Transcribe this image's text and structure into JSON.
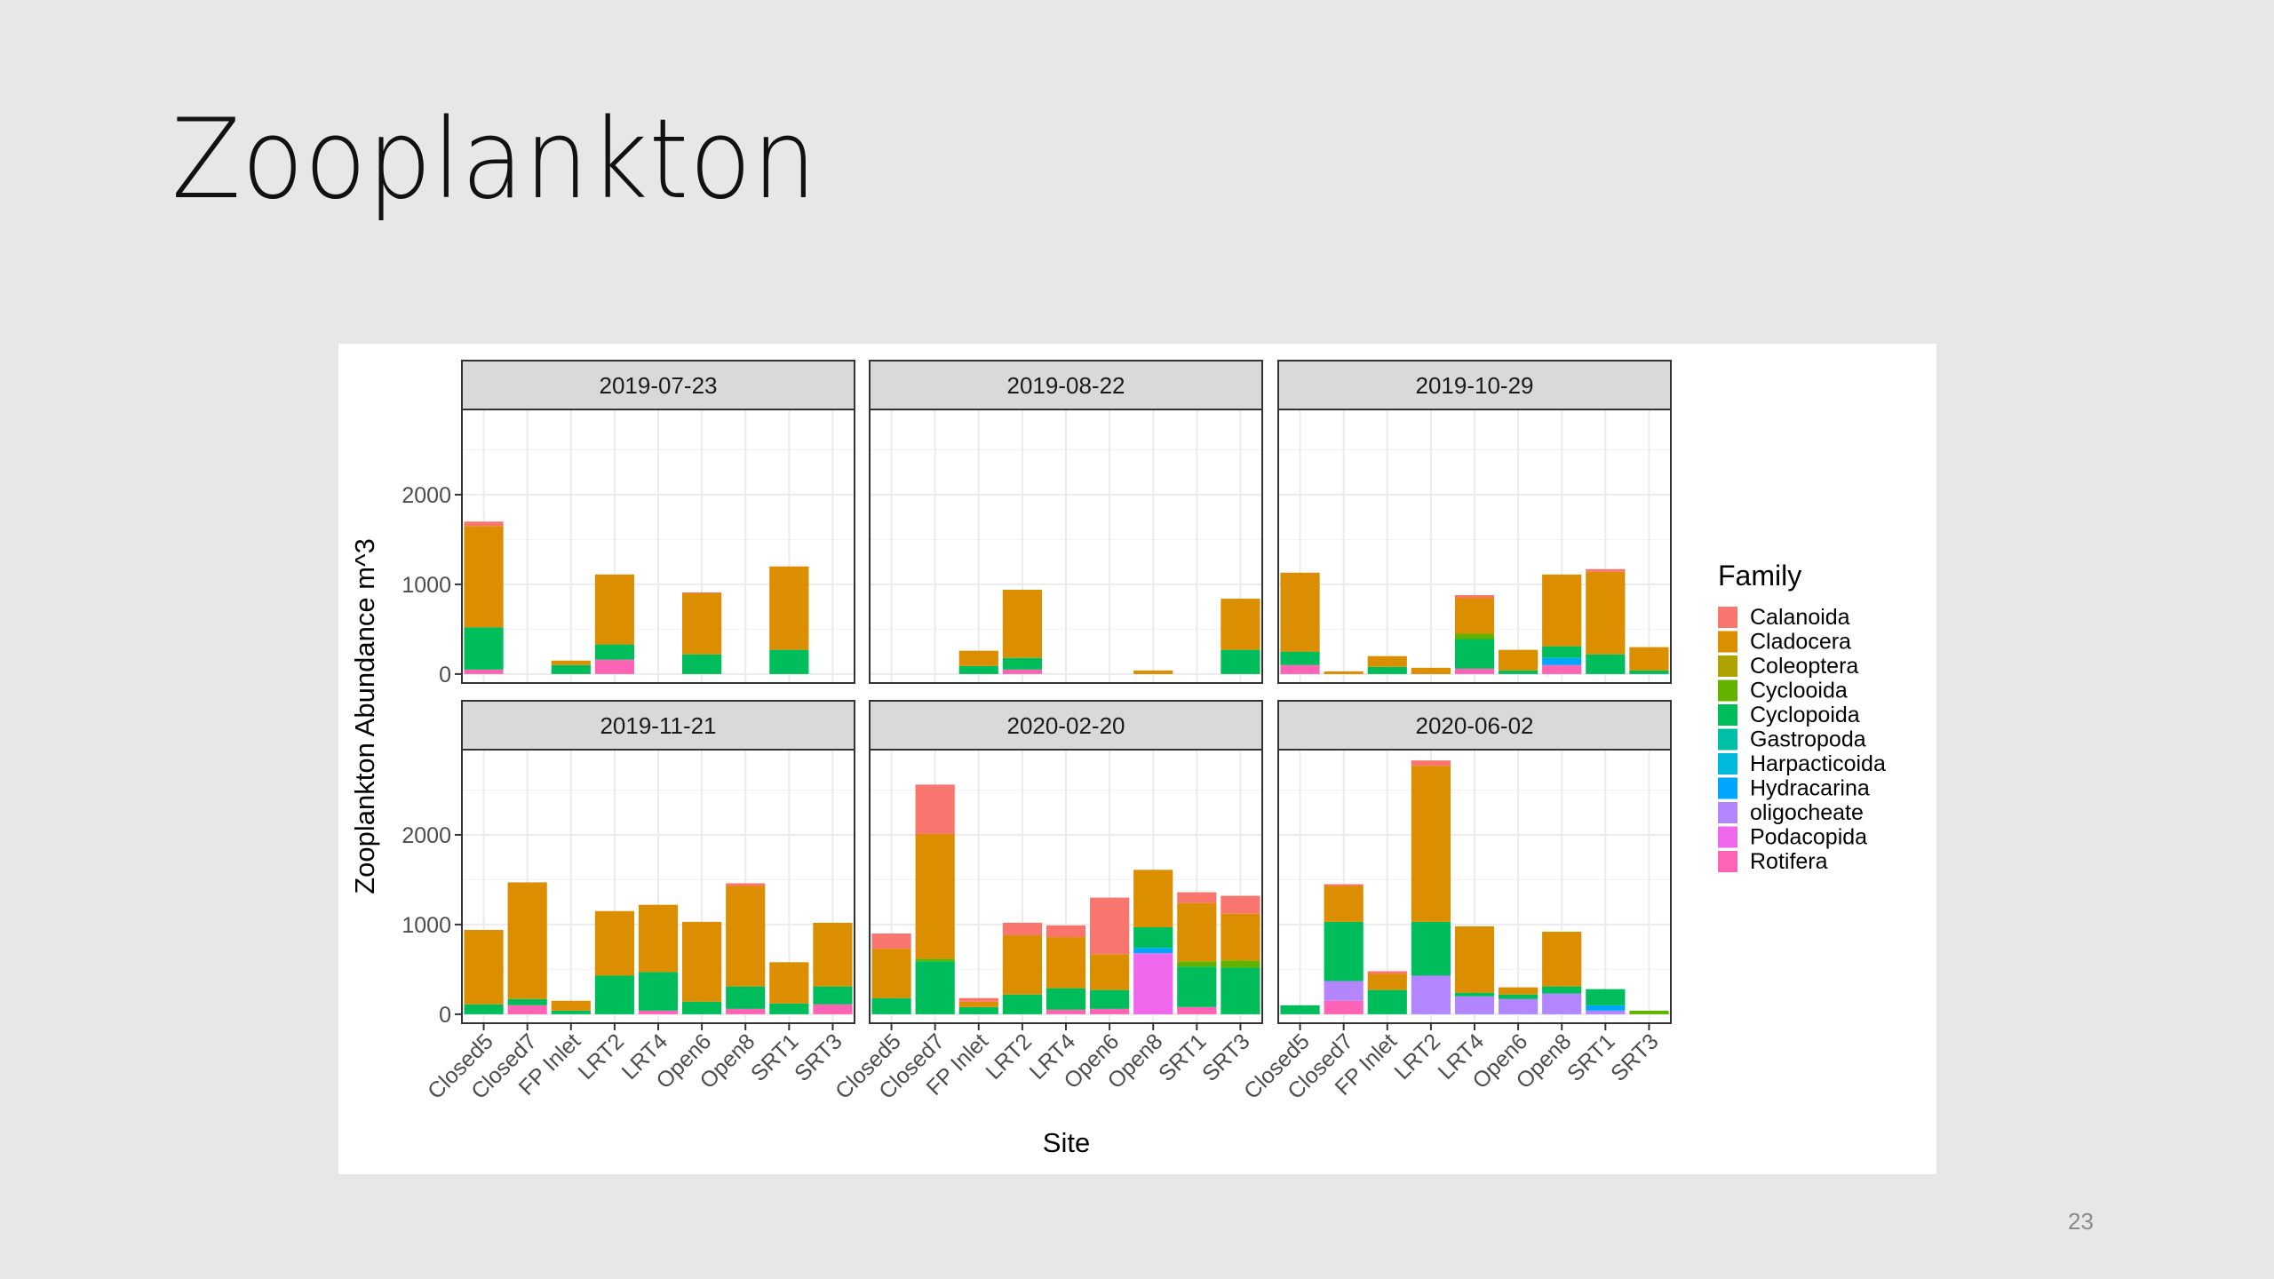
{
  "slide": {
    "title": "Zooplankton",
    "page_number": "23"
  },
  "chart_data": {
    "type": "bar",
    "stacked": true,
    "facet_layout": "2 rows x 3 columns",
    "xlabel": "Site",
    "ylabel": "Zooplankton Abundance m^3",
    "ylim": [
      -100,
      2950
    ],
    "yticks": [
      0,
      1000,
      2000
    ],
    "ytick_labels": [
      "0",
      "1000",
      "2000"
    ],
    "grid": true,
    "legend_position": "right",
    "legend_title": "Family",
    "categories": [
      "Closed5",
      "Closed7",
      "FP Inlet",
      "LRT2",
      "LRT4",
      "Open6",
      "Open8",
      "SRT1",
      "SRT3"
    ],
    "families": [
      "Calanoida",
      "Cladocera",
      "Coleoptera",
      "Cyclooida",
      "Cyclopoida",
      "Gastropoda",
      "Harpacticoida",
      "Hydracarina",
      "oligocheate",
      "Podacopida",
      "Rotifera"
    ],
    "colors": {
      "Calanoida": "#F8766D",
      "Cladocera": "#DB8E00",
      "Coleoptera": "#AEA200",
      "Cyclooida": "#64B200",
      "Cyclopoida": "#00BD5C",
      "Gastropoda": "#00C1A7",
      "Harpacticoida": "#00BADE",
      "Hydracarina": "#00A6FF",
      "oligocheate": "#B385FF",
      "Podacopida": "#EF67EB",
      "Rotifera": "#FF63B6"
    },
    "panels": [
      {
        "date": "2019-07-23",
        "sites": {
          "Closed5": {
            "Rotifera": 50,
            "Cyclopoida": 470,
            "Cladocera": 1130,
            "Calanoida": 50
          },
          "Closed7": {},
          "FP Inlet": {
            "Cyclopoida": 100,
            "Cladocera": 50
          },
          "LRT2": {
            "Rotifera": 160,
            "Cyclopoida": 170,
            "Cladocera": 780
          },
          "LRT4": {},
          "Open6": {
            "Cyclopoida": 220,
            "Cladocera": 680,
            "Calanoida": 10
          },
          "Open8": {},
          "SRT1": {
            "Cyclopoida": 270,
            "Cladocera": 930
          },
          "SRT3": {}
        }
      },
      {
        "date": "2019-08-22",
        "sites": {
          "Closed5": {},
          "Closed7": {},
          "FP Inlet": {
            "Cyclopoida": 90,
            "Cladocera": 170
          },
          "LRT2": {
            "Rotifera": 50,
            "Cyclopoida": 130,
            "Cladocera": 760
          },
          "LRT4": {},
          "Open6": {},
          "Open8": {
            "Cladocera": 40
          },
          "SRT1": {},
          "SRT3": {
            "Cyclopoida": 270,
            "Cladocera": 570
          }
        }
      },
      {
        "date": "2019-10-29",
        "sites": {
          "Closed5": {
            "Rotifera": 100,
            "Cyclopoida": 150,
            "Cladocera": 880
          },
          "Closed7": {
            "Cladocera": 30
          },
          "FP Inlet": {
            "Cyclopoida": 80,
            "Cladocera": 120
          },
          "LRT2": {
            "Cladocera": 70
          },
          "LRT4": {
            "Rotifera": 60,
            "Cyclopoida": 330,
            "Cyclooida": 60,
            "Cladocera": 400,
            "Calanoida": 30
          },
          "Open6": {
            "Cyclopoida": 40,
            "Cladocera": 230
          },
          "Open8": {
            "Rotifera": 100,
            "Hydracarina": 80,
            "Cyclopoida": 130,
            "Cladocera": 800
          },
          "SRT1": {
            "Cyclopoida": 220,
            "Cladocera": 920,
            "Calanoida": 30
          },
          "SRT3": {
            "Cyclopoida": 40,
            "Cladocera": 260
          }
        }
      },
      {
        "date": "2019-11-21",
        "sites": {
          "Closed5": {
            "Cyclopoida": 110,
            "Cladocera": 830
          },
          "Closed7": {
            "Rotifera": 100,
            "Cyclopoida": 70,
            "Cladocera": 1300
          },
          "FP Inlet": {
            "Cyclopoida": 40,
            "Cladocera": 110
          },
          "LRT2": {
            "Cyclopoida": 430,
            "Cladocera": 720
          },
          "LRT4": {
            "Rotifera": 40,
            "Cyclopoida": 430,
            "Cladocera": 750
          },
          "Open6": {
            "Cyclopoida": 140,
            "Cladocera": 890
          },
          "Open8": {
            "Rotifera": 60,
            "Cyclopoida": 250,
            "Cladocera": 1120,
            "Calanoida": 30
          },
          "SRT1": {
            "Cyclopoida": 120,
            "Cladocera": 460
          },
          "SRT3": {
            "Rotifera": 110,
            "Cyclopoida": 200,
            "Cladocera": 710
          }
        }
      },
      {
        "date": "2020-02-20",
        "sites": {
          "Closed5": {
            "Cyclopoida": 180,
            "Cladocera": 550,
            "Calanoida": 170
          },
          "Closed7": {
            "Cyclopoida": 590,
            "Cyclooida": 30,
            "Cladocera": 1390,
            "Calanoida": 550
          },
          "FP Inlet": {
            "Cyclopoida": 80,
            "Cladocera": 60,
            "Calanoida": 40
          },
          "LRT2": {
            "Cyclopoida": 220,
            "Cladocera": 660,
            "Calanoida": 140
          },
          "LRT4": {
            "Rotifera": 50,
            "Cyclopoida": 240,
            "Cladocera": 570,
            "Calanoida": 130
          },
          "Open6": {
            "Rotifera": 60,
            "Cyclopoida": 210,
            "Cladocera": 400,
            "Calanoida": 630
          },
          "Open8": {
            "Podacopida": 680,
            "Hydracarina": 60,
            "Cyclopoida": 230,
            "Cladocera": 640
          },
          "SRT1": {
            "Rotifera": 80,
            "Cyclopoida": 450,
            "Cyclooida": 60,
            "Cladocera": 650,
            "Calanoida": 120
          },
          "SRT3": {
            "Cyclopoida": 520,
            "Cyclooida": 80,
            "Cladocera": 520,
            "Calanoida": 200
          }
        }
      },
      {
        "date": "2020-06-02",
        "sites": {
          "Closed5": {
            "Cyclopoida": 100
          },
          "Closed7": {
            "Rotifera": 150,
            "oligocheate": 220,
            "Cyclopoida": 660,
            "Cladocera": 400,
            "Calanoida": 20
          },
          "FP Inlet": {
            "Cyclopoida": 270,
            "Cladocera": 180,
            "Calanoida": 30
          },
          "LRT2": {
            "oligocheate": 430,
            "Cyclopoida": 600,
            "Cladocera": 1740,
            "Calanoida": 60
          },
          "LRT4": {
            "oligocheate": 200,
            "Cyclopoida": 40,
            "Cladocera": 740
          },
          "Open6": {
            "oligocheate": 170,
            "Cyclopoida": 50,
            "Cladocera": 80
          },
          "Open8": {
            "oligocheate": 230,
            "Cyclopoida": 80,
            "Cladocera": 610
          },
          "SRT1": {
            "oligocheate": 40,
            "Hydracarina": 60,
            "Cyclopoida": 180
          },
          "SRT3": {
            "Cyclooida": 40
          }
        }
      }
    ]
  }
}
